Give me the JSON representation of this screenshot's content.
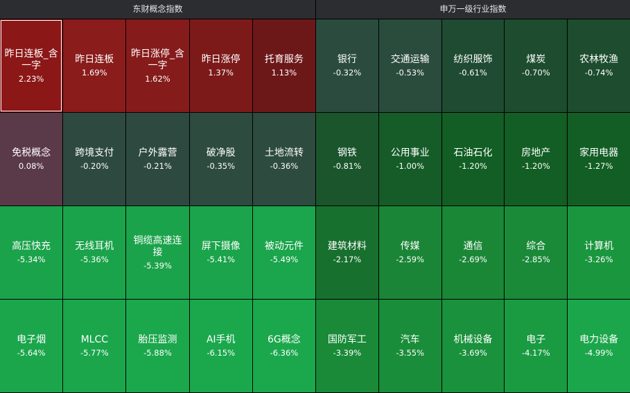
{
  "panels": [
    {
      "title": "东财概念指数",
      "tiles": [
        {
          "name": "昨日连板_含一字",
          "change": "2.23%",
          "color": "#8c1717"
        },
        {
          "name": "昨日连板",
          "change": "1.69%",
          "color": "#8a1c1c"
        },
        {
          "name": "昨日涨停_含一字",
          "change": "1.62%",
          "color": "#861b1b"
        },
        {
          "name": "昨日涨停",
          "change": "1.37%",
          "color": "#7c1a1a"
        },
        {
          "name": "托育服务",
          "change": "1.13%",
          "color": "#6d1818"
        },
        {
          "name": "免税概念",
          "change": "0.08%",
          "color": "#5a3a48"
        },
        {
          "name": "跨境支付",
          "change": "-0.20%",
          "color": "#2e4a40"
        },
        {
          "name": "户外露营",
          "change": "-0.21%",
          "color": "#2e4a40"
        },
        {
          "name": "破净股",
          "change": "-0.35%",
          "color": "#2d4b3e"
        },
        {
          "name": "土地流转",
          "change": "-0.36%",
          "color": "#2d4b3e"
        },
        {
          "name": "高压快充",
          "change": "-5.34%",
          "color": "#1ba34b"
        },
        {
          "name": "无线耳机",
          "change": "-5.36%",
          "color": "#1ba34b"
        },
        {
          "name": "铜缆高速连接",
          "change": "-5.39%",
          "color": "#1ba34b"
        },
        {
          "name": "屏下摄像",
          "change": "-5.41%",
          "color": "#1ba44b"
        },
        {
          "name": "被动元件",
          "change": "-5.49%",
          "color": "#1ba54c"
        },
        {
          "name": "电子烟",
          "change": "-5.64%",
          "color": "#1ba64c"
        },
        {
          "name": "MLCC",
          "change": "-5.77%",
          "color": "#1ba64c"
        },
        {
          "name": "胎压监测",
          "change": "-5.88%",
          "color": "#1ba74c"
        },
        {
          "name": "AI手机",
          "change": "-6.15%",
          "color": "#1ba84d"
        },
        {
          "name": "6G概念",
          "change": "-6.36%",
          "color": "#1ba84d"
        }
      ]
    },
    {
      "title": "申万一级行业指数",
      "tiles": [
        {
          "name": "银行",
          "change": "-0.32%",
          "color": "#2b4b3e"
        },
        {
          "name": "交通运输",
          "change": "-0.53%",
          "color": "#2a4c3c"
        },
        {
          "name": "纺织服饰",
          "change": "-0.61%",
          "color": "#1f4b32"
        },
        {
          "name": "煤炭",
          "change": "-0.70%",
          "color": "#1d4c2e"
        },
        {
          "name": "农林牧渔",
          "change": "-0.74%",
          "color": "#1d4c2e"
        },
        {
          "name": "钢铁",
          "change": "-0.81%",
          "color": "#1a552c"
        },
        {
          "name": "公用事业",
          "change": "-1.00%",
          "color": "#155c28"
        },
        {
          "name": "石油石化",
          "change": "-1.20%",
          "color": "#125e24"
        },
        {
          "name": "房地产",
          "change": "-1.20%",
          "color": "#125e24"
        },
        {
          "name": "家用电器",
          "change": "-1.27%",
          "color": "#125e24"
        },
        {
          "name": "建筑材料",
          "change": "-2.17%",
          "color": "#18702f"
        },
        {
          "name": "传媒",
          "change": "-2.59%",
          "color": "#1a8536"
        },
        {
          "name": "通信",
          "change": "-2.69%",
          "color": "#1a8737"
        },
        {
          "name": "综合",
          "change": "-2.85%",
          "color": "#1a8a38"
        },
        {
          "name": "计算机",
          "change": "-3.26%",
          "color": "#1a963e"
        },
        {
          "name": "国防军工",
          "change": "-3.39%",
          "color": "#1a8a38"
        },
        {
          "name": "汽车",
          "change": "-3.55%",
          "color": "#1a8d3a"
        },
        {
          "name": "机械设备",
          "change": "-3.69%",
          "color": "#1a913c"
        },
        {
          "name": "电子",
          "change": "-4.17%",
          "color": "#1a9b42"
        },
        {
          "name": "电力设备",
          "change": "-4.99%",
          "color": "#1ba64b"
        }
      ]
    }
  ]
}
